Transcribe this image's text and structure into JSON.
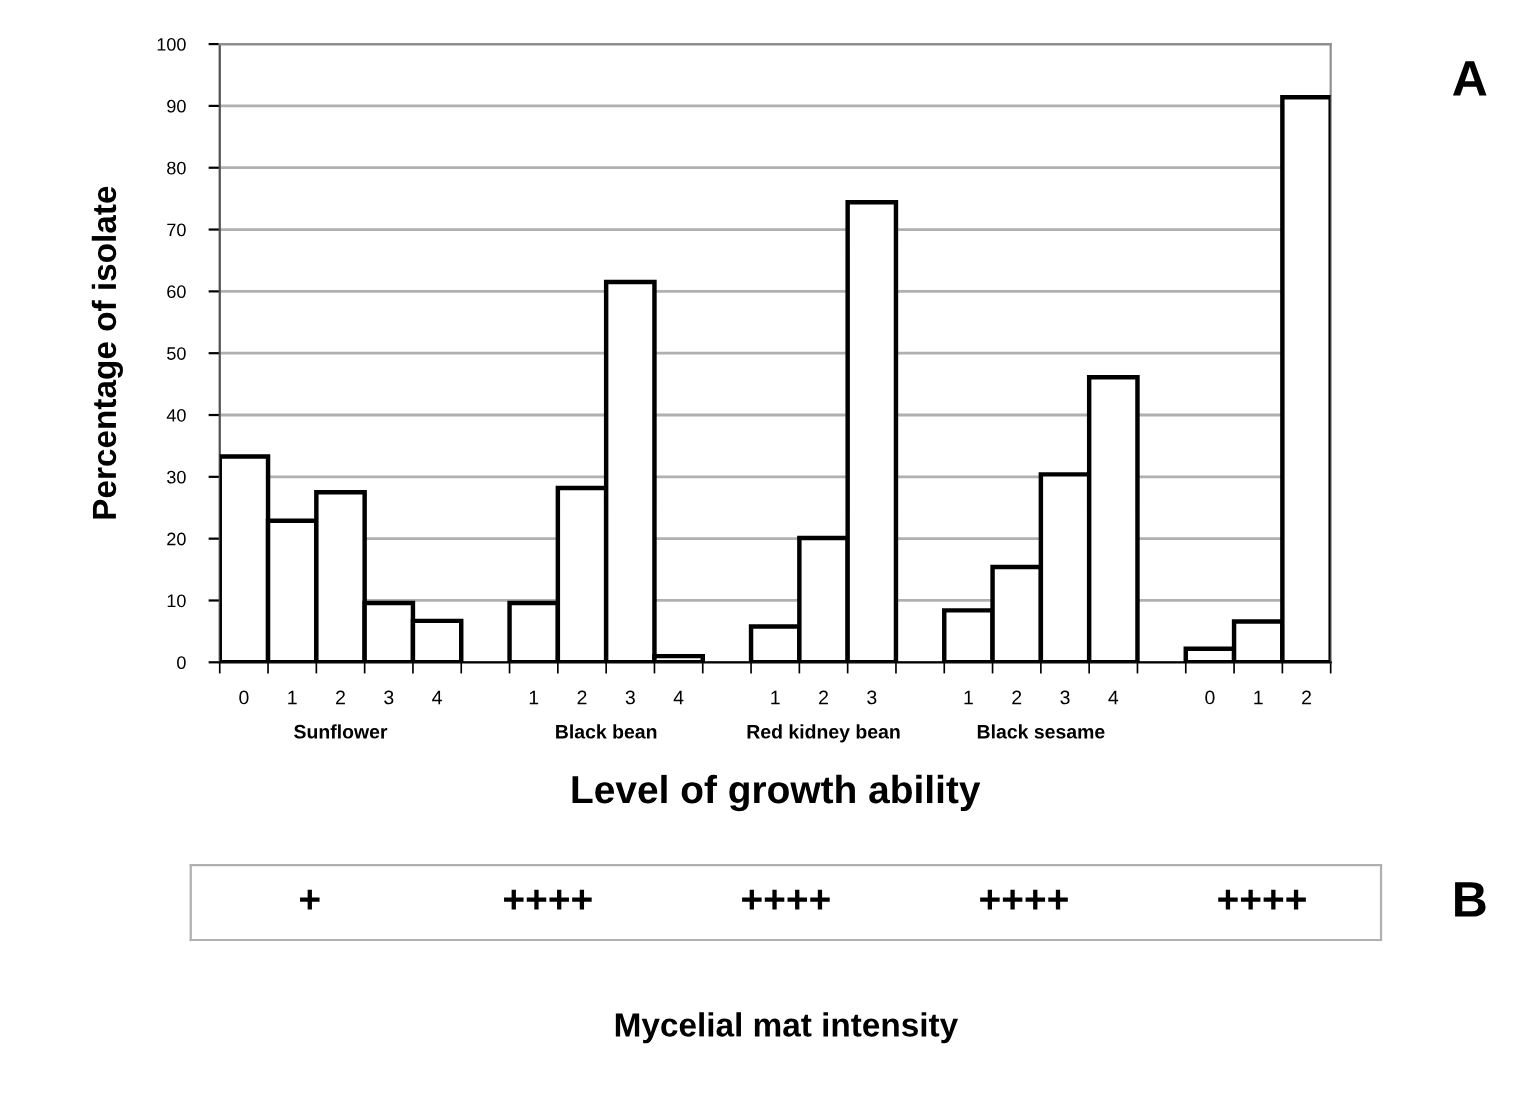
{
  "chart_data": [
    {
      "type": "bar",
      "xlabel": "Level of growth ability",
      "ylabel": "Percentage of isolate",
      "categories": [
        "0",
        "1",
        "2",
        "3",
        "4",
        null,
        "1",
        "2",
        "3",
        "4",
        null,
        "1",
        "2",
        "3",
        null,
        "1",
        "2",
        "3",
        "4",
        null,
        "0",
        "1",
        "2"
      ],
      "values": [
        33.3,
        22.9,
        27.5,
        9.6,
        6.7,
        null,
        9.6,
        28.2,
        61.5,
        1.0,
        null,
        5.8,
        20.1,
        74.4,
        null,
        8.4,
        15.4,
        30.4,
        46.1,
        null,
        2.2,
        6.6,
        91.4
      ],
      "color": "#ffffff",
      "ylim": [
        0,
        100
      ],
      "yticks": [
        0,
        10,
        20,
        30,
        40,
        50,
        60,
        70,
        80,
        90,
        100
      ],
      "grid": "y",
      "legend": false,
      "annotations": [
        "Sunflower",
        "Black bean",
        "Red kidney bean",
        "Black sesame",
        null,
        "A"
      ]
    },
    {
      "type": "other",
      "categories": [
        "+",
        "++++",
        "++++",
        "++++",
        "++++"
      ],
      "xlabel": "Mycelial mat intensity",
      "annotations": [
        "B"
      ]
    }
  ]
}
